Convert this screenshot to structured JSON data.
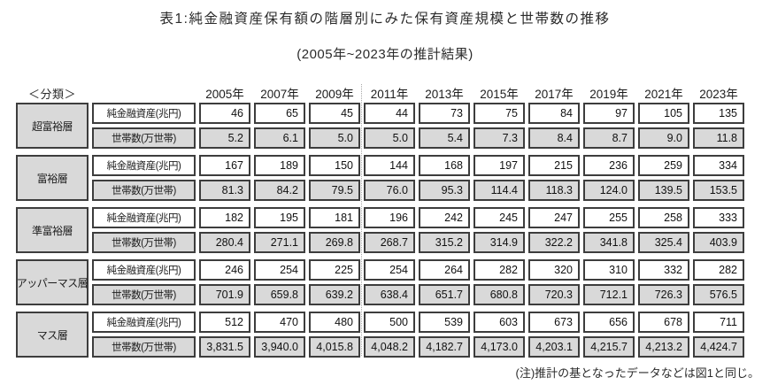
{
  "figure": {
    "title": "表1:純金融資産保有額の階層別にみた保有資産規模と世帯数の推移",
    "subtitle": "(2005年~2023年の推計結果)",
    "note": "(注)推計の基となったデータなどは図1と同じ。"
  },
  "table": {
    "classification_label": "＜分類＞",
    "years": [
      "2005年",
      "2007年",
      "2009年",
      "2011年",
      "2013年",
      "2015年",
      "2017年",
      "2019年",
      "2021年",
      "2023年"
    ],
    "metric_labels": {
      "assets": "純金融資産(兆円)",
      "households": "世帯数(万世帯)"
    },
    "tiers": [
      {
        "name": "超富裕層",
        "assets": [
          "46",
          "65",
          "45",
          "44",
          "73",
          "75",
          "84",
          "97",
          "105",
          "135"
        ],
        "households": [
          "5.2",
          "6.1",
          "5.0",
          "5.0",
          "5.4",
          "7.3",
          "8.4",
          "8.7",
          "9.0",
          "11.8"
        ]
      },
      {
        "name": "富裕層",
        "assets": [
          "167",
          "189",
          "150",
          "144",
          "168",
          "197",
          "215",
          "236",
          "259",
          "334"
        ],
        "households": [
          "81.3",
          "84.2",
          "79.5",
          "76.0",
          "95.3",
          "114.4",
          "118.3",
          "124.0",
          "139.5",
          "153.5"
        ]
      },
      {
        "name": "準富裕層",
        "assets": [
          "182",
          "195",
          "181",
          "196",
          "242",
          "245",
          "247",
          "255",
          "258",
          "333"
        ],
        "households": [
          "280.4",
          "271.1",
          "269.8",
          "268.7",
          "315.2",
          "314.9",
          "322.2",
          "341.8",
          "325.4",
          "403.9"
        ]
      },
      {
        "name": "アッパーマス層",
        "assets": [
          "246",
          "254",
          "225",
          "254",
          "264",
          "282",
          "320",
          "310",
          "332",
          "282"
        ],
        "households": [
          "701.9",
          "659.8",
          "639.2",
          "638.4",
          "651.7",
          "680.8",
          "720.3",
          "712.1",
          "726.3",
          "576.5"
        ]
      },
      {
        "name": "マス層",
        "assets": [
          "512",
          "470",
          "480",
          "500",
          "539",
          "603",
          "673",
          "656",
          "678",
          "711"
        ],
        "households": [
          "3,831.5",
          "3,940.0",
          "4,015.8",
          "4,048.2",
          "4,182.7",
          "4,173.0",
          "4,203.1",
          "4,215.7",
          "4,213.2",
          "4,424.7"
        ]
      }
    ]
  },
  "colors": {
    "cell_border": "#3d3d3d",
    "gray_fill": "#d9d9d9",
    "white_fill": "#ffffff",
    "text": "#222222",
    "dotted_separator": "#a8a8a8"
  },
  "chart_data": {
    "type": "table",
    "title": "表1:純金融資産保有額の階層別にみた保有資産規模と世帯数の推移",
    "subtitle": "(2005年~2023年の推計結果)",
    "x": [
      2005,
      2007,
      2009,
      2011,
      2013,
      2015,
      2017,
      2019,
      2021,
      2023
    ],
    "series": [
      {
        "name": "超富裕層 純金融資産(兆円)",
        "values": [
          46,
          65,
          45,
          44,
          73,
          75,
          84,
          97,
          105,
          135
        ]
      },
      {
        "name": "超富裕層 世帯数(万世帯)",
        "values": [
          5.2,
          6.1,
          5.0,
          5.0,
          5.4,
          7.3,
          8.4,
          8.7,
          9.0,
          11.8
        ]
      },
      {
        "name": "富裕層 純金融資産(兆円)",
        "values": [
          167,
          189,
          150,
          144,
          168,
          197,
          215,
          236,
          259,
          334
        ]
      },
      {
        "name": "富裕層 世帯数(万世帯)",
        "values": [
          81.3,
          84.2,
          79.5,
          76.0,
          95.3,
          114.4,
          118.3,
          124.0,
          139.5,
          153.5
        ]
      },
      {
        "name": "準富裕層 純金融資産(兆円)",
        "values": [
          182,
          195,
          181,
          196,
          242,
          245,
          247,
          255,
          258,
          333
        ]
      },
      {
        "name": "準富裕層 世帯数(万世帯)",
        "values": [
          280.4,
          271.1,
          269.8,
          268.7,
          315.2,
          314.9,
          322.2,
          341.8,
          325.4,
          403.9
        ]
      },
      {
        "name": "アッパーマス層 純金融資産(兆円)",
        "values": [
          246,
          254,
          225,
          254,
          264,
          282,
          320,
          310,
          332,
          282
        ]
      },
      {
        "name": "アッパーマス層 世帯数(万世帯)",
        "values": [
          701.9,
          659.8,
          639.2,
          638.4,
          651.7,
          680.8,
          720.3,
          712.1,
          726.3,
          576.5
        ]
      },
      {
        "name": "マス層 純金融資産(兆円)",
        "values": [
          512,
          470,
          480,
          500,
          539,
          603,
          673,
          656,
          678,
          711
        ]
      },
      {
        "name": "マス層 世帯数(万世帯)",
        "values": [
          3831.5,
          3940.0,
          4015.8,
          4048.2,
          4182.7,
          4173.0,
          4203.1,
          4215.7,
          4213.2,
          4424.7
        ]
      }
    ],
    "note": "(注)推計の基となったデータなどは図1と同じ。"
  }
}
